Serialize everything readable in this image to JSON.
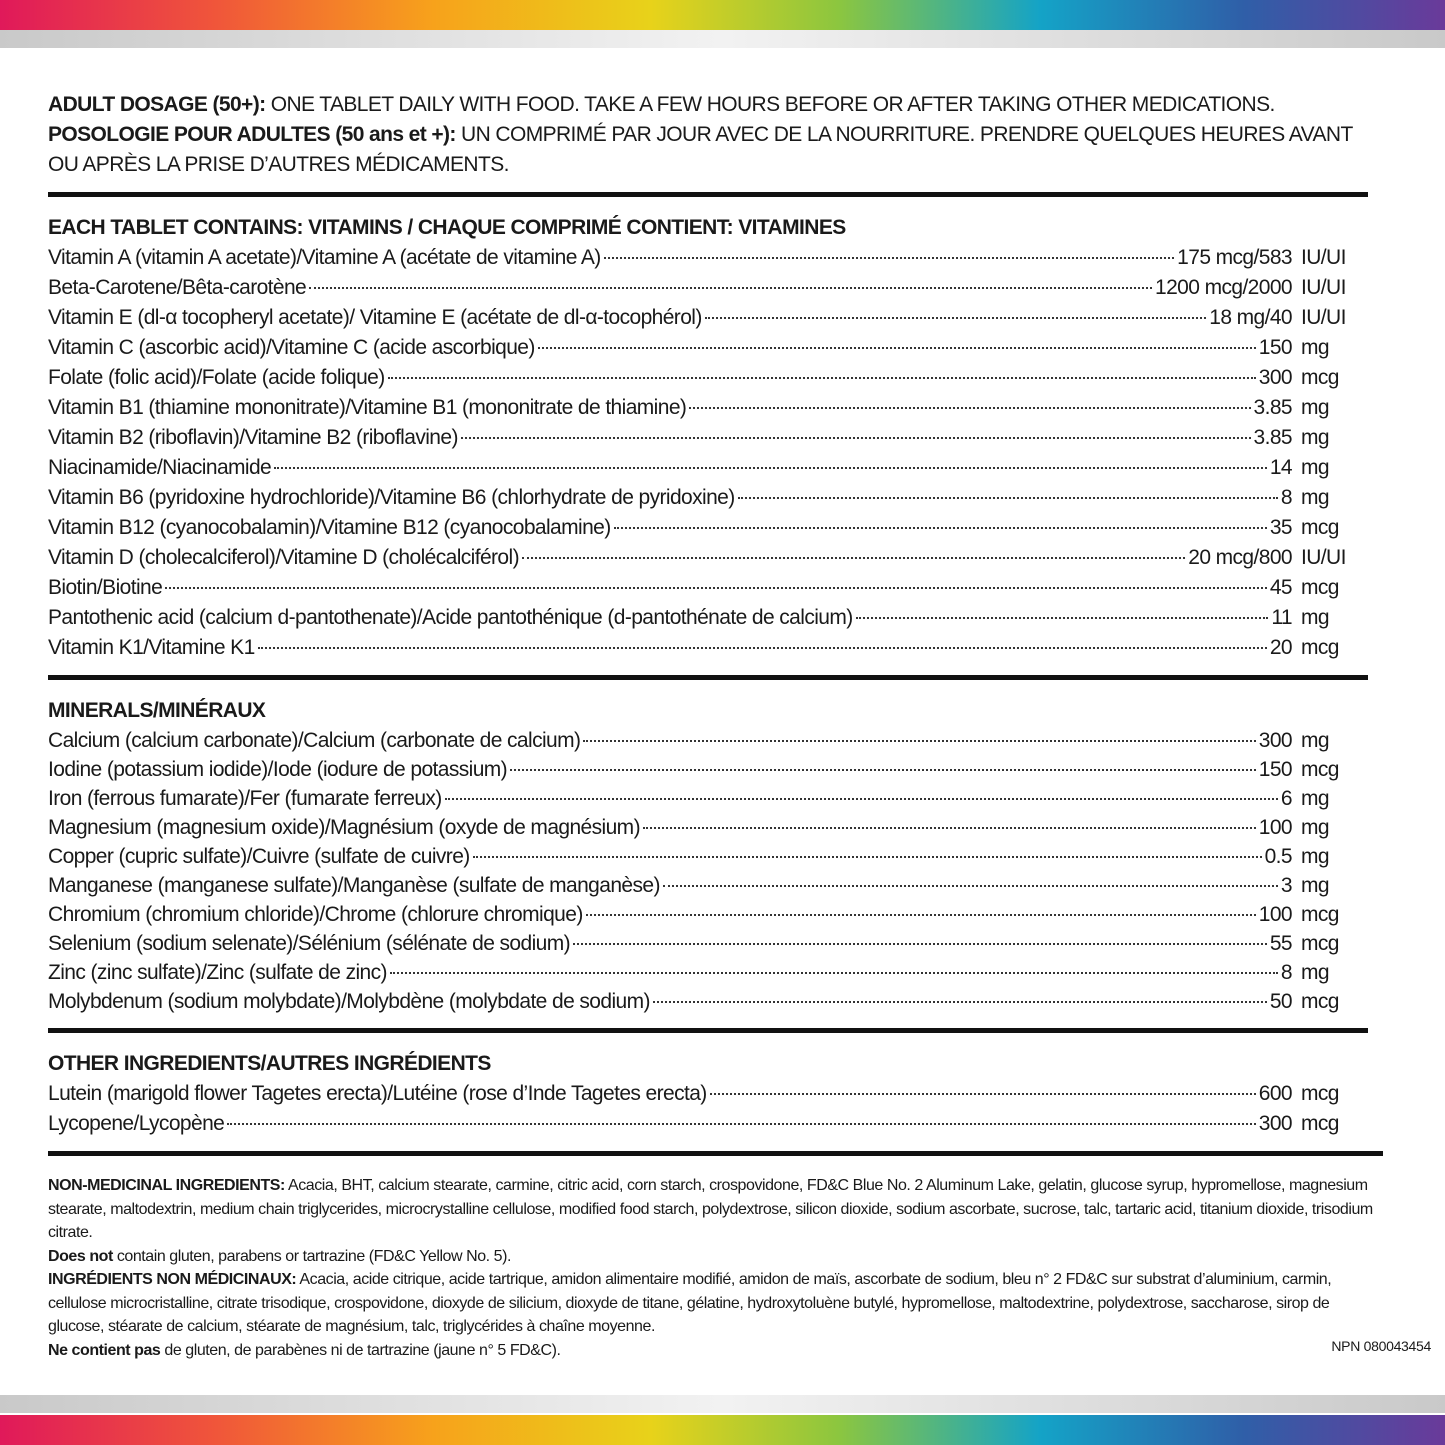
{
  "dosage": {
    "en_label": "ADULT DOSAGE (50+):",
    "en_text": " ONE TABLET DAILY WITH FOOD. TAKE A FEW HOURS BEFORE OR AFTER TAKING OTHER MEDICATIONS.",
    "fr_label": "POSOLOGIE POUR ADULTES (50 ans et +):",
    "fr_text": " UN COMPRIMÉ PAR JOUR AVEC DE LA NOURRITURE. PRENDRE QUELQUES HEURES AVANT OU APRÈS LA PRISE D’AUTRES MÉDICAMENTS."
  },
  "sections": [
    {
      "heading": "EACH TABLET CONTAINS: VITAMINS / CHAQUE COMPRIMÉ CONTIENT: VITAMINES",
      "rows": [
        {
          "name": "Vitamin A (vitamin A acetate)/Vitamine A (acétate de vitamine A)",
          "amount": "175 mcg/583",
          "unit": "IU/UI"
        },
        {
          "name": "Beta-Carotene/Bêta-carotène",
          "amount": "1200 mcg/2000",
          "unit": "IU/UI"
        },
        {
          "name": "Vitamin E (dl-α tocopheryl acetate)/ Vitamine E (acétate de dl-α-tocophérol)",
          "amount": "18 mg/40",
          "unit": "IU/UI"
        },
        {
          "name": "Vitamin C (ascorbic acid)/Vitamine C (acide ascorbique)",
          "amount": "150",
          "unit": "mg"
        },
        {
          "name": "Folate (folic acid)/Folate (acide folique)",
          "amount": "300",
          "unit": "mcg"
        },
        {
          "name": "Vitamin B1 (thiamine mononitrate)/Vitamine B1 (mononitrate de thiamine)",
          "amount": "3.85",
          "unit": "mg"
        },
        {
          "name": "Vitamin B2 (riboflavin)/Vitamine B2 (riboflavine)",
          "amount": "3.85",
          "unit": "mg"
        },
        {
          "name": "Niacinamide/Niacinamide",
          "amount": "14",
          "unit": "mg"
        },
        {
          "name": "Vitamin B6 (pyridoxine hydrochloride)/Vitamine B6 (chlorhydrate de pyridoxine)",
          "amount": "8",
          "unit": "mg"
        },
        {
          "name": "Vitamin B12 (cyanocobalamin)/Vitamine B12 (cyanocobalamine)",
          "amount": "35",
          "unit": "mcg"
        },
        {
          "name": "Vitamin D (cholecalciferol)/Vitamine D (cholécalciférol)",
          "amount": "20 mcg/800",
          "unit": "IU/UI"
        },
        {
          "name": "Biotin/Biotine",
          "amount": "45",
          "unit": "mcg"
        },
        {
          "name": "Pantothenic acid (calcium d-pantothenate)/Acide pantothénique (d-pantothénate de calcium)",
          "amount": "11",
          "unit": "mg"
        },
        {
          "name": "Vitamin K1/Vitamine K1",
          "amount": "20",
          "unit": "mcg"
        }
      ]
    },
    {
      "heading": "MINERALS/MINÉRAUX",
      "rows": [
        {
          "name": "Calcium (calcium carbonate)/Calcium (carbonate de calcium)",
          "amount": "300",
          "unit": "mg"
        },
        {
          "name": "Iodine (potassium iodide)/Iode (iodure de potassium)",
          "amount": "150",
          "unit": "mcg"
        },
        {
          "name": "Iron (ferrous fumarate)/Fer (fumarate ferreux)",
          "amount": "6",
          "unit": "mg"
        },
        {
          "name": "Magnesium (magnesium oxide)/Magnésium (oxyde de magnésium)",
          "amount": "100",
          "unit": "mg"
        },
        {
          "name": "Copper (cupric sulfate)/Cuivre (sulfate de cuivre)",
          "amount": "0.5",
          "unit": "mg"
        },
        {
          "name": "Manganese (manganese sulfate)/Manganèse (sulfate de manganèse)",
          "amount": "3",
          "unit": "mg"
        },
        {
          "name": "Chromium (chromium chloride)/Chrome (chlorure chromique)",
          "amount": "100",
          "unit": "mcg"
        },
        {
          "name": "Selenium (sodium selenate)/Sélénium (sélénate de sodium)",
          "amount": "55",
          "unit": "mcg"
        },
        {
          "name": "Zinc (zinc sulfate)/Zinc (sulfate de zinc)",
          "amount": "8",
          "unit": "mg"
        },
        {
          "name": "Molybdenum (sodium molybdate)/Molybdène (molybdate de sodium)",
          "amount": "50",
          "unit": "mcg"
        }
      ]
    },
    {
      "heading": "OTHER INGREDIENTS/AUTRES INGRÉDIENTS",
      "rows": [
        {
          "name": "Lutein (marigold flower Tagetes erecta)/Lutéine (rose d’Inde Tagetes erecta)",
          "amount": "600",
          "unit": "mcg"
        },
        {
          "name": "Lycopene/Lycopène",
          "amount": "300",
          "unit": "mcg"
        }
      ]
    }
  ],
  "non_medicinal": [
    {
      "lead": "NON-MEDICINAL INGREDIENTS:",
      "text": " Acacia, BHT, calcium stearate, carmine, citric acid, corn starch, crospovidone, FD&C Blue No. 2 Aluminum Lake, gelatin, glucose syrup, hypromellose, magnesium stearate, maltodextrin, medium chain triglycerides, microcrystalline cellulose, modified food starch, polydextrose, silicon dioxide, sodium ascorbate, sucrose, talc, tartaric acid, titanium dioxide, trisodium citrate."
    },
    {
      "lead": "Does not",
      "text": " contain gluten, parabens or tartrazine (FD&C Yellow No. 5)."
    },
    {
      "lead": "INGRÉDIENTS NON MÉDICINAUX:",
      "text": " Acacia, acide citrique, acide tartrique, amidon alimentaire modifié, amidon de maïs, ascorbate de sodium, bleu n° 2 FD&C sur substrat d’aluminium, carmin, cellulose microcristalline, citrate trisodique, crospovidone, dioxyde de silicium, dioxyde de titane, gélatine, hydroxytoluène butylé, hypromellose, maltodextrine, polydextrose, saccharose, sirop de glucose, stéarate de calcium, stéarate de magnésium, talc, triglycérides à chaîne moyenne."
    },
    {
      "lead": "Ne contient pas",
      "text": " de gluten, de parabènes ni de tartrazine (jaune n° 5 FD&C)."
    }
  ],
  "npn": "NPN 080043454"
}
